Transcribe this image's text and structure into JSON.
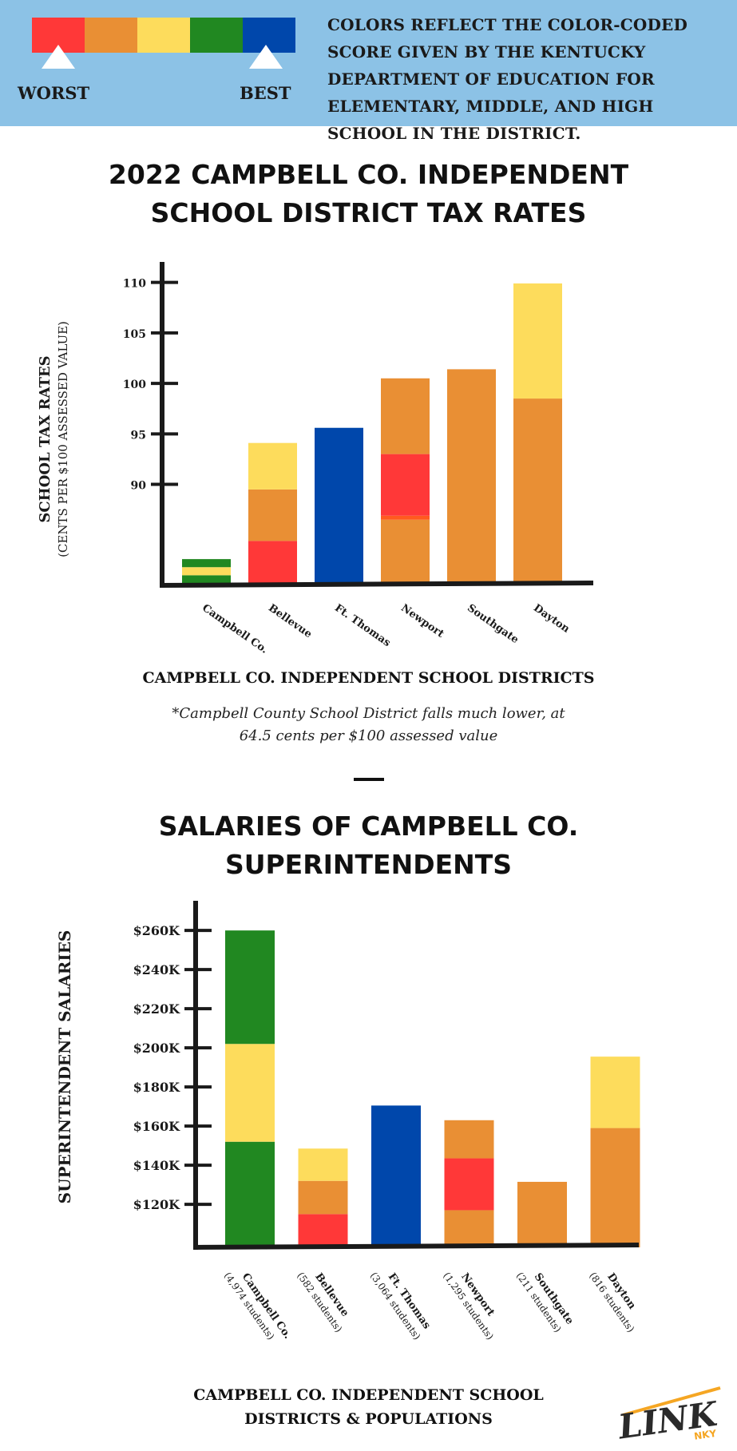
{
  "legend": {
    "colors": [
      "#ff3838",
      "#e98f34",
      "#fddc5c",
      "#218821",
      "#0047ab"
    ],
    "worst_label": "WORST",
    "best_label": "BEST",
    "note": "COLORS REFLECT THE COLOR-CODED SCORE GIVEN BY THE KENTUCKY DEPARTMENT OF EDUCATION FOR ELEMENTARY, MIDDLE, AND HIGH SCHOOL IN THE DISTRICT."
  },
  "tax_section": {
    "title_line1": "2022 CAMPBELL CO. INDEPENDENT",
    "title_line2": "SCHOOL DISTRICT TAX RATES",
    "xcaption": "CAMPBELL CO. INDEPENDENT SCHOOL DISTRICTS",
    "note_line1": "*Campbell County School District falls much lower, at",
    "note_line2": "64.5 cents per $100 assessed value"
  },
  "salary_section": {
    "title_line1": "SALARIES OF CAMPBELL CO.",
    "title_line2": "SUPERINTENDENTS",
    "xcaption_line1": "CAMPBELL CO. INDEPENDENT SCHOOL",
    "xcaption_line2": "DISTRICTS & POPULATIONS"
  },
  "logo": {
    "main": "LINK",
    "sub": "NKY",
    "accent": "#f5a623"
  },
  "chart_data": [
    {
      "type": "bar",
      "stacked": true,
      "ylabel": "SCHOOL TAX RATES",
      "ylabel_sub": "(CENTS PER $100 ASSESSED VALUE)",
      "xlabel": "CAMPBELL CO. INDEPENDENT SCHOOL DISTRICTS",
      "yticks": [
        90,
        95,
        100,
        105,
        110
      ],
      "ylim": [
        80,
        111
      ],
      "grid": false,
      "categories": [
        "Campbell Co.",
        "Bellevue",
        "Ft. Thomas",
        "Newport",
        "Southgate",
        "Dayton"
      ],
      "values": [
        null,
        94.1,
        95.6,
        100.5,
        101.4,
        109.9
      ],
      "segments": [
        [
          {
            "to": 81.0,
            "color": "#218821"
          },
          {
            "to": 81.8,
            "color": "#fddc5c"
          },
          {
            "to": 82.6,
            "color": "#218821"
          }
        ],
        [
          {
            "to": 84.4,
            "color": "#ff3838"
          },
          {
            "to": 89.5,
            "color": "#e98f34"
          },
          {
            "to": 94.1,
            "color": "#fddc5c"
          }
        ],
        [
          {
            "to": 95.6,
            "color": "#0047ab"
          }
        ],
        [
          {
            "to": 86.5,
            "color": "#e98f34"
          },
          {
            "to": 86.9,
            "color": "#ff5a1f"
          },
          {
            "to": 93.0,
            "color": "#ff3838"
          },
          {
            "to": 100.5,
            "color": "#e98f34"
          }
        ],
        [
          {
            "to": 101.4,
            "color": "#e98f34"
          }
        ],
        [
          {
            "to": 98.5,
            "color": "#e98f34"
          },
          {
            "to": 109.9,
            "color": "#fddc5c"
          }
        ]
      ]
    },
    {
      "type": "bar",
      "stacked": true,
      "ylabel": "SUPERINTENDENT  SALARIES",
      "xlabel": "CAMPBELL CO. INDEPENDENT SCHOOL DISTRICTS & POPULATIONS",
      "yticks": [
        120,
        140,
        160,
        180,
        200,
        220,
        240,
        260
      ],
      "ytick_labels": [
        "$120K",
        "$140K",
        "$160K",
        "$180K",
        "$200K",
        "$220K",
        "$240K",
        "$260K"
      ],
      "ylim": [
        98,
        267
      ],
      "grid": false,
      "categories": [
        "Campbell Co.",
        "Bellevue",
        "Ft. Thomas",
        "Newport",
        "Southgate",
        "Dayton"
      ],
      "populations": [
        "(4,974 students)",
        "(582 students)",
        "(3,064 students)",
        "(1,295 students)",
        "(211 students)",
        "(816 students)"
      ],
      "values": [
        260,
        148.5,
        170.5,
        163,
        131.5,
        195.5
      ],
      "segments": [
        [
          {
            "to": 152,
            "color": "#218821"
          },
          {
            "to": 202,
            "color": "#fddc5c"
          },
          {
            "to": 260,
            "color": "#218821"
          }
        ],
        [
          {
            "to": 115,
            "color": "#ff3838"
          },
          {
            "to": 132,
            "color": "#e98f34"
          },
          {
            "to": 148.5,
            "color": "#fddc5c"
          }
        ],
        [
          {
            "to": 170.5,
            "color": "#0047ab"
          }
        ],
        [
          {
            "to": 117,
            "color": "#e98f34"
          },
          {
            "to": 143.5,
            "color": "#ff3838"
          },
          {
            "to": 163,
            "color": "#e98f34"
          }
        ],
        [
          {
            "to": 131.5,
            "color": "#e98f34"
          }
        ],
        [
          {
            "to": 159,
            "color": "#e98f34"
          },
          {
            "to": 195.5,
            "color": "#fddc5c"
          }
        ]
      ]
    }
  ]
}
